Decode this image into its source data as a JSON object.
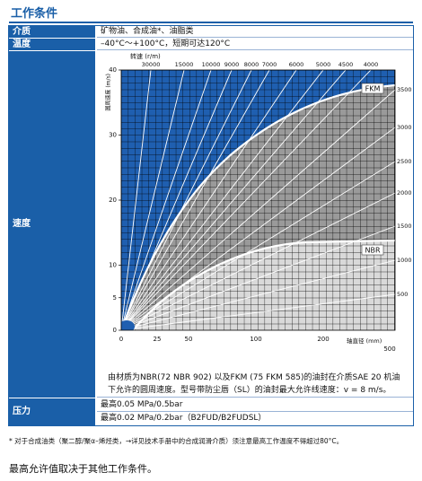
{
  "title": "工作条件",
  "table": {
    "rows": [
      {
        "label": "介质",
        "value": "矿物油、合成油*、油脂类"
      },
      {
        "label": "温度",
        "value": "–40°C～+100°C，短期可达120°C"
      },
      {
        "label": "速度",
        "chart": {
          "top_title": "转速 (r/m)",
          "y_label": "圆周速度 (m/s)",
          "x_label": "轴直径 (mm)",
          "ylim": [
            0,
            40
          ],
          "yticks": [
            0,
            5,
            10,
            20,
            30,
            40
          ],
          "xticks": [
            "0",
            "25",
            "50",
            "100",
            "200",
            "500"
          ],
          "rpm_top": [
            "30000",
            "15000",
            "10000",
            "9000",
            "8000",
            "7000",
            "6000",
            "5000",
            "4500",
            "4000"
          ],
          "rpm_right": [
            "3500",
            "3000",
            "2500",
            "2000",
            "1500",
            "1000",
            "500"
          ],
          "curves": [
            "FKM",
            "NBR"
          ]
        },
        "note": "由材质为NBR(72 NBR 902) 以及FKM (75 FKM 585)的油封在介质SAE 20 机油下允许的圆周速度。型号带防尘唇（SL）的油封最大允许线速度：v = 8 m/s。"
      },
      {
        "label": "压力",
        "values": [
          "最高0.05 MPa/0.5bar",
          "最高0.02 MPa/0.2bar（B2FUD/B2FUDSL）"
        ]
      }
    ]
  },
  "footnote": "* 对于合成油类（聚二醇/聚α–烯烃类，→详见技术手册中的合成润滑介质）须注意最高工作温度不得超过80°C。",
  "closing": "最高允许值取决于其他工作条件。"
}
